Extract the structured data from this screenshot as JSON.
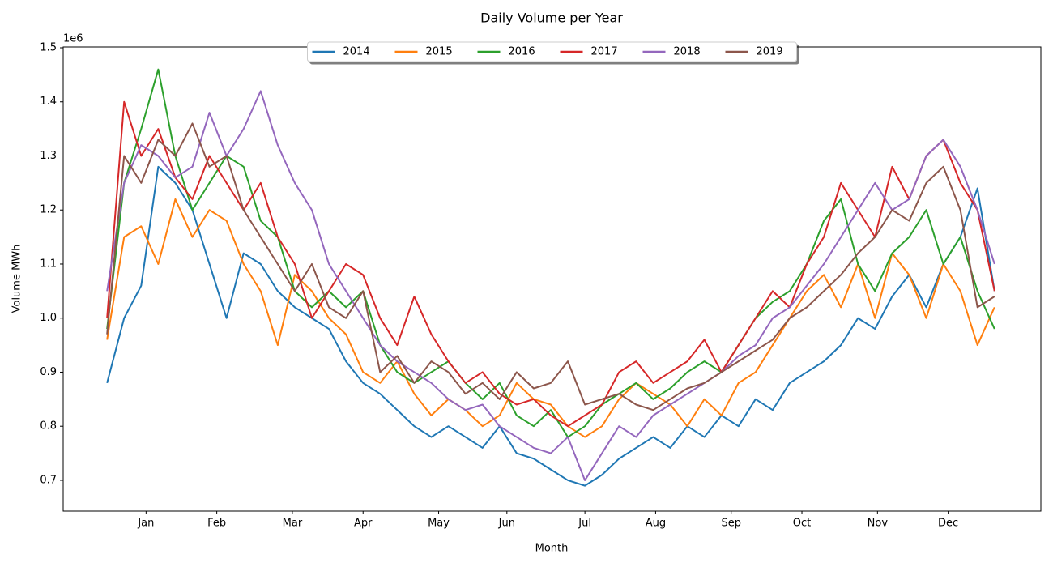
{
  "chart_data": {
    "type": "line",
    "title": "Daily Volume per Year",
    "x_label": "Month",
    "y_label": "Volume MWh",
    "y_offset_label": "1e6",
    "x": [
      0,
      7,
      14,
      21,
      28,
      35,
      42,
      49,
      56,
      63,
      70,
      77,
      84,
      91,
      98,
      105,
      112,
      119,
      126,
      133,
      140,
      147,
      154,
      161,
      168,
      175,
      182,
      189,
      196,
      203,
      210,
      217,
      224,
      231,
      238,
      245,
      252,
      259,
      266,
      273,
      280,
      287,
      294,
      301,
      308,
      315,
      322,
      329,
      336,
      343,
      350,
      357,
      364
    ],
    "series": [
      {
        "name": "2014",
        "color": "#1f77b4",
        "values": [
          0.88,
          1.0,
          1.06,
          1.28,
          1.25,
          1.2,
          1.1,
          1.0,
          1.12,
          1.1,
          1.05,
          1.02,
          1.0,
          0.98,
          0.92,
          0.88,
          0.86,
          0.83,
          0.8,
          0.78,
          0.8,
          0.78,
          0.76,
          0.8,
          0.75,
          0.74,
          0.72,
          0.7,
          0.69,
          0.71,
          0.74,
          0.76,
          0.78,
          0.76,
          0.8,
          0.78,
          0.82,
          0.8,
          0.85,
          0.83,
          0.88,
          0.9,
          0.92,
          0.95,
          1.0,
          0.98,
          1.04,
          1.08,
          1.02,
          1.1,
          1.15,
          1.24,
          1.05
        ]
      },
      {
        "name": "2015",
        "color": "#ff7f0e",
        "values": [
          0.96,
          1.15,
          1.17,
          1.1,
          1.22,
          1.15,
          1.2,
          1.18,
          1.1,
          1.05,
          0.95,
          1.08,
          1.05,
          1.0,
          0.97,
          0.9,
          0.88,
          0.92,
          0.86,
          0.82,
          0.85,
          0.83,
          0.8,
          0.82,
          0.88,
          0.85,
          0.84,
          0.8,
          0.78,
          0.8,
          0.85,
          0.88,
          0.86,
          0.84,
          0.8,
          0.85,
          0.82,
          0.88,
          0.9,
          0.95,
          1.0,
          1.05,
          1.08,
          1.02,
          1.1,
          1.0,
          1.12,
          1.08,
          1.0,
          1.1,
          1.05,
          0.95,
          1.02
        ]
      },
      {
        "name": "2016",
        "color": "#2ca02c",
        "values": [
          0.98,
          1.25,
          1.35,
          1.46,
          1.3,
          1.2,
          1.25,
          1.3,
          1.28,
          1.18,
          1.15,
          1.05,
          1.02,
          1.05,
          1.02,
          1.05,
          0.95,
          0.9,
          0.88,
          0.9,
          0.92,
          0.88,
          0.85,
          0.88,
          0.82,
          0.8,
          0.83,
          0.78,
          0.8,
          0.84,
          0.86,
          0.88,
          0.85,
          0.87,
          0.9,
          0.92,
          0.9,
          0.95,
          1.0,
          1.03,
          1.05,
          1.1,
          1.18,
          1.22,
          1.1,
          1.05,
          1.12,
          1.15,
          1.2,
          1.1,
          1.15,
          1.05,
          0.98
        ]
      },
      {
        "name": "2017",
        "color": "#d62728",
        "values": [
          1.0,
          1.4,
          1.3,
          1.35,
          1.26,
          1.22,
          1.3,
          1.25,
          1.2,
          1.25,
          1.15,
          1.1,
          1.0,
          1.05,
          1.1,
          1.08,
          1.0,
          0.95,
          1.04,
          0.97,
          0.92,
          0.88,
          0.9,
          0.86,
          0.84,
          0.85,
          0.82,
          0.8,
          0.82,
          0.84,
          0.9,
          0.92,
          0.88,
          0.9,
          0.92,
          0.96,
          0.9,
          0.95,
          1.0,
          1.05,
          1.02,
          1.1,
          1.15,
          1.25,
          1.2,
          1.15,
          1.28,
          1.22,
          1.3,
          1.33,
          1.25,
          1.2,
          1.05
        ]
      },
      {
        "name": "2018",
        "color": "#9467bd",
        "values": [
          1.05,
          1.25,
          1.32,
          1.3,
          1.26,
          1.28,
          1.38,
          1.3,
          1.35,
          1.42,
          1.32,
          1.25,
          1.2,
          1.1,
          1.05,
          1.0,
          0.95,
          0.92,
          0.9,
          0.88,
          0.85,
          0.83,
          0.84,
          0.8,
          0.78,
          0.76,
          0.75,
          0.78,
          0.7,
          0.75,
          0.8,
          0.78,
          0.82,
          0.84,
          0.86,
          0.88,
          0.9,
          0.93,
          0.95,
          1.0,
          1.02,
          1.06,
          1.1,
          1.15,
          1.2,
          1.25,
          1.2,
          1.22,
          1.3,
          1.33,
          1.28,
          1.2,
          1.1
        ]
      },
      {
        "name": "2019",
        "color": "#8c564b",
        "values": [
          0.97,
          1.3,
          1.25,
          1.33,
          1.3,
          1.36,
          1.28,
          1.3,
          1.2,
          1.15,
          1.1,
          1.05,
          1.1,
          1.02,
          1.0,
          1.05,
          0.9,
          0.93,
          0.88,
          0.92,
          0.9,
          0.86,
          0.88,
          0.85,
          0.9,
          0.87,
          0.88,
          0.92,
          0.84,
          0.85,
          0.86,
          0.84,
          0.83,
          0.85,
          0.87,
          0.88,
          0.9,
          0.92,
          0.94,
          0.96,
          1.0,
          1.02,
          1.05,
          1.08,
          1.12,
          1.15,
          1.2,
          1.18,
          1.25,
          1.28,
          1.2,
          1.02,
          1.04
        ]
      }
    ],
    "xlim": [
      -18,
      383
    ],
    "xticks": [
      {
        "value": 16,
        "label": "Jan"
      },
      {
        "value": 45,
        "label": "Feb"
      },
      {
        "value": 76,
        "label": "Mar"
      },
      {
        "value": 105,
        "label": "Apr"
      },
      {
        "value": 136,
        "label": "May"
      },
      {
        "value": 164,
        "label": "Jun"
      },
      {
        "value": 196,
        "label": "Jul"
      },
      {
        "value": 225,
        "label": "Aug"
      },
      {
        "value": 256,
        "label": "Sep"
      },
      {
        "value": 285,
        "label": "Oct"
      },
      {
        "value": 316,
        "label": "Nov"
      },
      {
        "value": 345,
        "label": "Dec"
      }
    ],
    "ylim": [
      0.643,
      1.5015
    ],
    "yticks": [
      0.7,
      0.8,
      0.9,
      {
        "value": 1,
        "label": "1.0"
      },
      1.1,
      1.2,
      1.3,
      1.4,
      1.5
    ],
    "grid": false,
    "legend": "upper center"
  }
}
